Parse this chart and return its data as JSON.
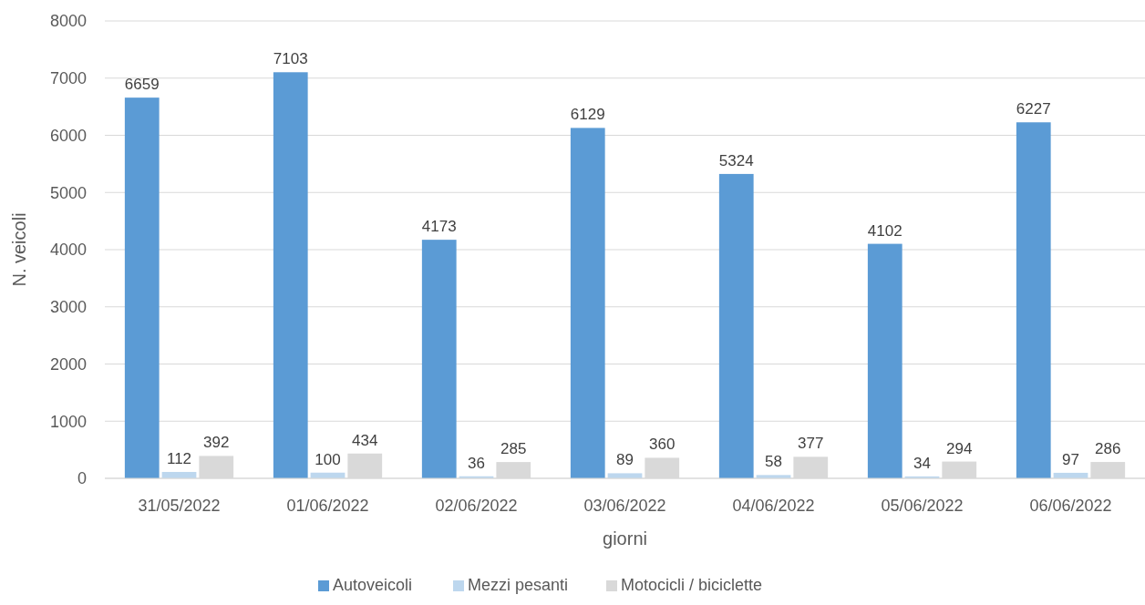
{
  "chart_data": {
    "type": "bar",
    "xlabel": "giorni",
    "ylabel": "N. veicoli",
    "categories": [
      "31/05/2022",
      "01/06/2022",
      "02/06/2022",
      "03/06/2022",
      "04/06/2022",
      "05/06/2022",
      "06/06/2022"
    ],
    "series": [
      {
        "name": "Autoveicoli",
        "color": "#5b9bd5",
        "values": [
          6659,
          7103,
          4173,
          6129,
          5324,
          4102,
          6227
        ]
      },
      {
        "name": "Mezzi pesanti",
        "color": "#bdd7ee",
        "values": [
          112,
          100,
          36,
          89,
          58,
          34,
          97
        ]
      },
      {
        "name": "Motocicli / biciclette",
        "color": "#d9d9d9",
        "values": [
          392,
          434,
          285,
          360,
          377,
          294,
          286
        ]
      }
    ],
    "ylim": [
      0,
      8000
    ],
    "yticks": [
      0,
      1000,
      2000,
      3000,
      4000,
      5000,
      6000,
      7000,
      8000
    ],
    "grid": "y",
    "legend": "bottom",
    "data_labels": true
  }
}
